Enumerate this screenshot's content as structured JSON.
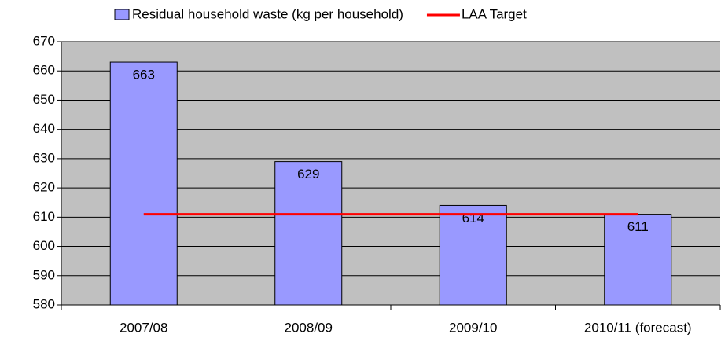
{
  "chart_data": {
    "type": "bar",
    "categories": [
      "2007/08",
      "2008/09",
      "2009/10",
      "2010/11 (forecast)"
    ],
    "series": [
      {
        "name": "Residual household waste (kg per household)",
        "color": "#9999ff",
        "type": "bar",
        "values": [
          663,
          629,
          614,
          611
        ]
      },
      {
        "name": "LAA Target",
        "color": "#ff0000",
        "type": "line",
        "values": [
          611,
          611,
          611,
          611
        ]
      }
    ],
    "ylim": [
      580,
      670
    ],
    "yticks": [
      580,
      590,
      600,
      610,
      620,
      630,
      640,
      650,
      660,
      670
    ],
    "grid": true,
    "legend": "top",
    "data_labels": true
  }
}
